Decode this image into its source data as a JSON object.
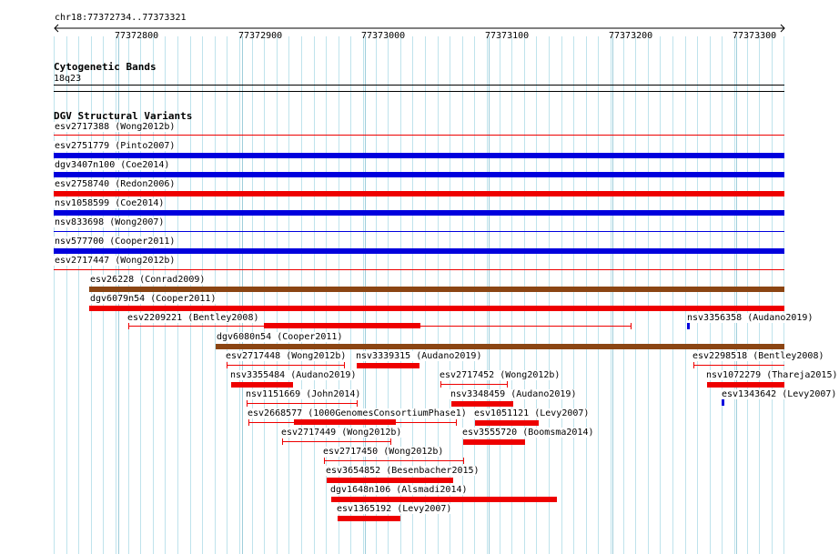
{
  "ruler": {
    "position": "chr18:77372734..77373321",
    "ticks": [
      "77372800",
      "77372900",
      "77373000",
      "77373100",
      "77373200",
      "77373300"
    ]
  },
  "cytoband": {
    "title": "Cytogenetic Bands",
    "band": "18q23"
  },
  "dgv": {
    "title": "DGV Structural Variants",
    "colors": {
      "loss": "#ee0000",
      "gain": "#0000dd",
      "complex": "#8b4513"
    },
    "features": [
      {
        "id": "f1",
        "label": "esv2717388 (Wong2012b)",
        "type": "loss",
        "style": "thin"
      },
      {
        "id": "f2",
        "label": "esv2751779 (Pinto2007)",
        "type": "gain",
        "style": "thick"
      },
      {
        "id": "f3",
        "label": "dgv3407n100 (Coe2014)",
        "type": "gain",
        "style": "thick"
      },
      {
        "id": "f4",
        "label": "esv2758740 (Redon2006)",
        "type": "loss",
        "style": "thick"
      },
      {
        "id": "f5",
        "label": "nsv1058599 (Coe2014)",
        "type": "gain",
        "style": "thick"
      },
      {
        "id": "f6",
        "label": "nsv833698 (Wong2007)",
        "type": "gain",
        "style": "thin"
      },
      {
        "id": "f7",
        "label": "nsv577700 (Cooper2011)",
        "type": "gain",
        "style": "thick"
      },
      {
        "id": "f8",
        "label": "esv2717447 (Wong2012b)",
        "type": "loss",
        "style": "thin"
      },
      {
        "id": "f9",
        "label": "esv26228 (Conrad2009)",
        "type": "complex",
        "style": "thick"
      },
      {
        "id": "f10",
        "label": "dgv6079n54 (Cooper2011)",
        "type": "loss",
        "style": "thick"
      },
      {
        "id": "f11",
        "label": "esv2209221 (Bentley2008)",
        "type": "loss",
        "style": "split"
      },
      {
        "id": "f12",
        "label": "nsv3356358 (Audano2019)",
        "type": "gain",
        "style": "dot"
      },
      {
        "id": "f13",
        "label": "dgv6080n54 (Cooper2011)",
        "type": "complex",
        "style": "thick"
      },
      {
        "id": "f14",
        "label": "esv2717448 (Wong2012b)",
        "type": "loss",
        "style": "thin"
      },
      {
        "id": "f15",
        "label": "nsv3339315 (Audano2019)",
        "type": "loss",
        "style": "thick"
      },
      {
        "id": "f16",
        "label": "esv2298518 (Bentley2008)",
        "type": "loss",
        "style": "thin"
      },
      {
        "id": "f17",
        "label": "nsv3355484 (Audano2019)",
        "type": "loss",
        "style": "thick"
      },
      {
        "id": "f18",
        "label": "esv2717452 (Wong2012b)",
        "type": "loss",
        "style": "thin"
      },
      {
        "id": "f19",
        "label": "nsv1072279 (Thareja2015)",
        "type": "loss",
        "style": "thick"
      },
      {
        "id": "f20",
        "label": "nsv1151669 (John2014)",
        "type": "loss",
        "style": "thin"
      },
      {
        "id": "f21",
        "label": "nsv3348459 (Audano2019)",
        "type": "loss",
        "style": "thick"
      },
      {
        "id": "f22",
        "label": "esv1343642 (Levy2007)",
        "type": "gain",
        "style": "dot"
      },
      {
        "id": "f23",
        "label": "esv2668577 (1000GenomesConsortiumPhase1)",
        "type": "loss",
        "style": "split"
      },
      {
        "id": "f24",
        "label": "esv1051121 (Levy2007)",
        "type": "loss",
        "style": "thick"
      },
      {
        "id": "f25",
        "label": "esv2717449 (Wong2012b)",
        "type": "loss",
        "style": "thin"
      },
      {
        "id": "f26",
        "label": "esv3555720 (Boomsma2014)",
        "type": "loss",
        "style": "thick"
      },
      {
        "id": "f27",
        "label": "esv2717450 (Wong2012b)",
        "type": "loss",
        "style": "thin"
      },
      {
        "id": "f28",
        "label": "esv3654852 (Besenbacher2015)",
        "type": "loss",
        "style": "thick"
      },
      {
        "id": "f29",
        "label": "dgv1648n106 (Alsmadi2014)",
        "type": "loss",
        "style": "thick"
      },
      {
        "id": "f30",
        "label": "esv1365192 (Levy2007)",
        "type": "loss",
        "style": "thick"
      }
    ]
  }
}
